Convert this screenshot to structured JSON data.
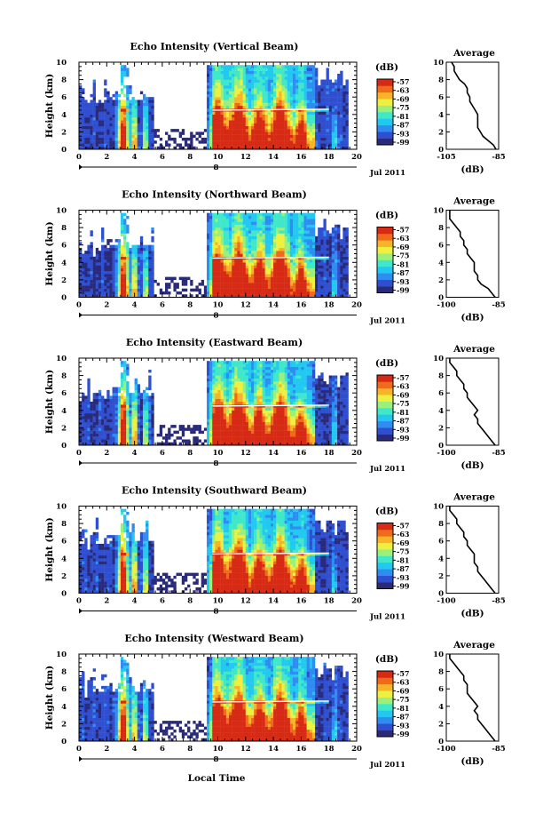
{
  "figure": {
    "local_time_label": "Local Time",
    "date_label": "Jul 2011",
    "day_marker": "8"
  },
  "colorbar": {
    "unit": "(dB)",
    "ticks": [
      "-57",
      "-63",
      "-69",
      "-75",
      "-81",
      "-87",
      "-93",
      "-99"
    ],
    "colors": [
      "#2a2a7a",
      "#2f4fd0",
      "#2f8cf0",
      "#22c8f0",
      "#3fe8c8",
      "#9af07a",
      "#eef040",
      "#f8b428",
      "#f06a1c",
      "#d62a14"
    ]
  },
  "colors": {
    "no_data": "#ffffff",
    "melting_layer": "#ffffff",
    "profile_line": "#000000"
  },
  "chart_data": [
    {
      "type": "heatmap",
      "title": "Echo Intensity (Vertical Beam)",
      "ylabel": "Height (km)",
      "xlabel": "",
      "xticks": [
        "0",
        "2",
        "4",
        "6",
        "8",
        "10",
        "12",
        "14",
        "16",
        "18",
        "20"
      ],
      "yticks": [
        "0",
        "2",
        "4",
        "6",
        "8",
        "10"
      ],
      "xlim": [
        0,
        20
      ],
      "ylim": [
        0,
        10
      ],
      "avg_profile": {
        "title": "Average",
        "xlabel": "(dB)",
        "xticks": [
          "-105",
          "-85"
        ],
        "xlim": [
          -105,
          -85
        ],
        "yticks": [
          "0",
          "2",
          "4",
          "6",
          "8",
          "10"
        ],
        "ylim": [
          0,
          10
        ],
        "x": [
          -86,
          -87,
          -89,
          -91,
          -92,
          -93,
          -93,
          -93,
          -93,
          -94,
          -95,
          -96,
          -96,
          -97,
          -97,
          -98,
          -100,
          -101,
          -102,
          -102,
          -103
        ],
        "y": [
          0,
          0.5,
          1.0,
          1.5,
          2.0,
          2.5,
          3.0,
          3.5,
          4.0,
          4.5,
          5.0,
          5.5,
          6.0,
          6.5,
          7.0,
          7.5,
          8.0,
          8.5,
          9.0,
          9.5,
          10.0
        ]
      }
    },
    {
      "type": "heatmap",
      "title": "Echo Intensity (Northward Beam)",
      "ylabel": "Height (km)",
      "xlabel": "",
      "xticks": [
        "0",
        "2",
        "4",
        "6",
        "8",
        "10",
        "12",
        "14",
        "16",
        "18",
        "20"
      ],
      "yticks": [
        "0",
        "2",
        "4",
        "6",
        "8",
        "10"
      ],
      "xlim": [
        0,
        20
      ],
      "ylim": [
        0,
        10
      ],
      "avg_profile": {
        "title": "Average",
        "xlabel": "(dB)",
        "xticks": [
          "-100",
          "-85"
        ],
        "xlim": [
          -100,
          -85
        ],
        "yticks": [
          "0",
          "2",
          "4",
          "6",
          "8",
          "10"
        ],
        "ylim": [
          0,
          10
        ],
        "x": [
          -86,
          -87,
          -88,
          -90,
          -91,
          -91,
          -92,
          -92,
          -92,
          -93,
          -94,
          -94,
          -95,
          -95,
          -96,
          -96,
          -97,
          -98,
          -99,
          -99,
          -99
        ],
        "y": [
          0,
          0.5,
          1.0,
          1.5,
          2.0,
          2.5,
          3.0,
          3.5,
          4.0,
          4.5,
          5.0,
          5.5,
          6.0,
          6.5,
          7.0,
          7.5,
          8.0,
          8.5,
          9.0,
          9.5,
          10.0
        ]
      }
    },
    {
      "type": "heatmap",
      "title": "Echo Intensity (Eastward Beam)",
      "ylabel": "Height (km)",
      "xlabel": "",
      "xticks": [
        "0",
        "2",
        "4",
        "6",
        "8",
        "10",
        "12",
        "14",
        "16",
        "18",
        "20"
      ],
      "yticks": [
        "0",
        "2",
        "4",
        "6",
        "8",
        "10"
      ],
      "xlim": [
        0,
        20
      ],
      "ylim": [
        0,
        10
      ],
      "avg_profile": {
        "title": "Average",
        "xlabel": "(dB)",
        "xticks": [
          "-100",
          "-85"
        ],
        "xlim": [
          -100,
          -85
        ],
        "yticks": [
          "0",
          "2",
          "4",
          "6",
          "8",
          "10"
        ],
        "ylim": [
          0,
          10
        ],
        "x": [
          -86,
          -87,
          -88,
          -89,
          -90,
          -91,
          -91,
          -92,
          -91,
          -92,
          -93,
          -94,
          -94,
          -95,
          -95,
          -96,
          -97,
          -97,
          -98,
          -99,
          -99
        ],
        "y": [
          0,
          0.5,
          1.0,
          1.5,
          2.0,
          2.5,
          3.0,
          3.5,
          4.0,
          4.5,
          5.0,
          5.5,
          6.0,
          6.5,
          7.0,
          7.5,
          8.0,
          8.5,
          9.0,
          9.5,
          10.0
        ]
      }
    },
    {
      "type": "heatmap",
      "title": "Echo Intensity (Southward Beam)",
      "ylabel": "Height (km)",
      "xlabel": "",
      "xticks": [
        "0",
        "2",
        "4",
        "6",
        "8",
        "10",
        "12",
        "14",
        "16",
        "18",
        "20"
      ],
      "yticks": [
        "0",
        "2",
        "4",
        "6",
        "8",
        "10"
      ],
      "xlim": [
        0,
        20
      ],
      "ylim": [
        0,
        10
      ],
      "avg_profile": {
        "title": "Average",
        "xlabel": "(dB)",
        "xticks": [
          "-100",
          "-85"
        ],
        "xlim": [
          -100,
          -85
        ],
        "yticks": [
          "0",
          "2",
          "4",
          "6",
          "8",
          "10"
        ],
        "ylim": [
          0,
          10
        ],
        "x": [
          -86,
          -87,
          -88,
          -89,
          -90,
          -91,
          -91,
          -92,
          -92,
          -92,
          -93,
          -94,
          -94,
          -95,
          -95,
          -96,
          -97,
          -97,
          -98,
          -99,
          -99
        ],
        "y": [
          0,
          0.5,
          1.0,
          1.5,
          2.0,
          2.5,
          3.0,
          3.5,
          4.0,
          4.5,
          5.0,
          5.5,
          6.0,
          6.5,
          7.0,
          7.5,
          8.0,
          8.5,
          9.0,
          9.5,
          10.0
        ]
      }
    },
    {
      "type": "heatmap",
      "title": "Echo Intensity (Westward Beam)",
      "ylabel": "Height (km)",
      "xlabel": "Local Time",
      "xticks": [
        "0",
        "2",
        "4",
        "6",
        "8",
        "10",
        "12",
        "14",
        "16",
        "18",
        "20"
      ],
      "yticks": [
        "0",
        "2",
        "4",
        "6",
        "8",
        "10"
      ],
      "xlim": [
        0,
        20
      ],
      "ylim": [
        0,
        10
      ],
      "avg_profile": {
        "title": "Average",
        "xlabel": "(dB)",
        "xticks": [
          "-100",
          "-85"
        ],
        "xlim": [
          -100,
          -85
        ],
        "yticks": [
          "0",
          "2",
          "4",
          "6",
          "8",
          "10"
        ],
        "ylim": [
          0,
          10
        ],
        "x": [
          -86,
          -87,
          -88,
          -89,
          -90,
          -91,
          -91,
          -92,
          -91,
          -92,
          -93,
          -94,
          -94,
          -94,
          -95,
          -95,
          -96,
          -97,
          -98,
          -99,
          -99
        ],
        "y": [
          0,
          0.5,
          1.0,
          1.5,
          2.0,
          2.5,
          3.0,
          3.5,
          4.0,
          4.5,
          5.0,
          5.5,
          6.0,
          6.5,
          7.0,
          7.5,
          8.0,
          8.5,
          9.0,
          9.5,
          10.0
        ]
      }
    }
  ]
}
